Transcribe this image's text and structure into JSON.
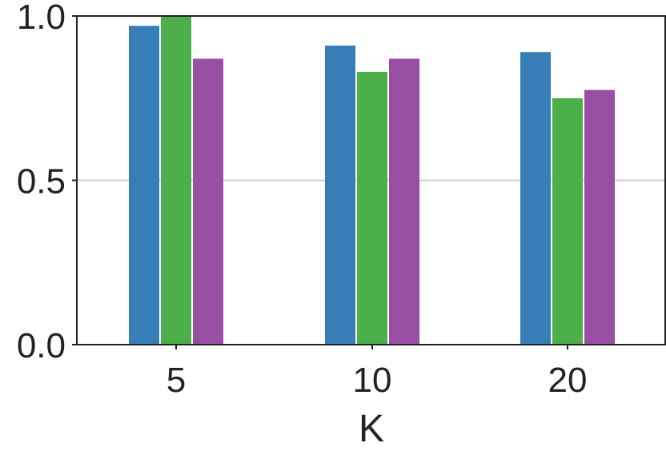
{
  "chart_data": {
    "type": "bar",
    "categories": [
      "5",
      "10",
      "20"
    ],
    "series": [
      {
        "values": [
          0.97,
          0.91,
          0.89
        ]
      },
      {
        "values": [
          1.0,
          0.83,
          0.75
        ]
      },
      {
        "values": [
          0.87,
          0.87,
          0.775
        ]
      }
    ],
    "colors": [
      "#377eb8",
      "#4daf4a",
      "#984ea3"
    ],
    "title": "",
    "xlabel": "K",
    "ylabel": "",
    "ylim": [
      0,
      1.0
    ],
    "yticks": [
      "0.0",
      "0.5",
      "1.0"
    ],
    "grid": "horizontal"
  }
}
